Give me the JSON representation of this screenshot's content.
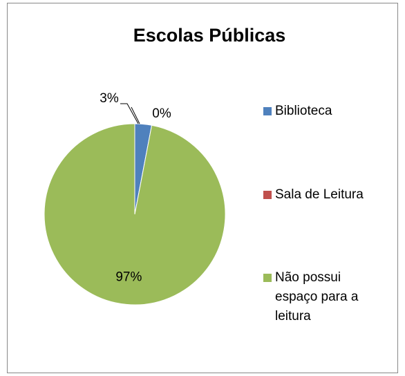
{
  "chart_data": {
    "type": "pie",
    "title": "Escolas Públicas",
    "categories": [
      "Biblioteca",
      "Sala de Leitura",
      "Não possui espaço para a leitura"
    ],
    "values": [
      3,
      0,
      97
    ],
    "value_labels": [
      "3%",
      "0%",
      "97%"
    ],
    "colors": [
      "#4f81bd",
      "#c0504d",
      "#9bbb59"
    ],
    "legend": "right"
  }
}
